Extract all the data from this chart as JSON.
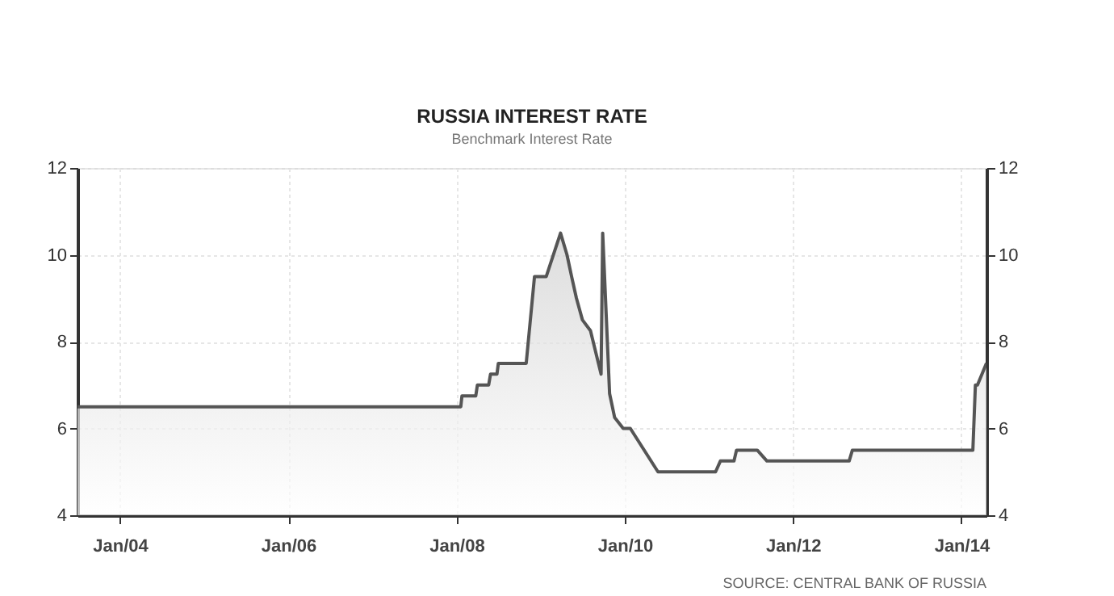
{
  "chart_data": {
    "type": "area",
    "title": "RUSSIA INTEREST RATE",
    "subtitle": "Benchmark Interest Rate",
    "x": [
      "2003-07-01",
      "2008-01-20",
      "2008-01-25",
      "2008-03-25",
      "2008-04-01",
      "2008-05-20",
      "2008-05-28",
      "2008-06-25",
      "2008-07-01",
      "2008-10-30",
      "2008-12-05",
      "2009-01-25",
      "2009-03-28",
      "2009-04-25",
      "2009-05-15",
      "2009-06-05",
      "2009-07-01",
      "2009-08-05",
      "2009-09-20",
      "2009-09-27",
      "2009-10-27",
      "2009-11-18",
      "2009-12-25",
      "2010-01-25",
      "2010-05-25",
      "2011-01-30",
      "2011-02-20",
      "2011-04-20",
      "2011-05-01",
      "2011-07-30",
      "2011-09-10",
      "2012-09-01",
      "2012-09-15",
      "2014-02-20",
      "2014-03-03",
      "2014-03-12",
      "2014-04-20"
    ],
    "series": [
      {
        "color": "#555555",
        "values": [
          6.5,
          6.5,
          6.75,
          6.75,
          7.0,
          7.0,
          7.25,
          7.25,
          7.5,
          7.5,
          9.5,
          9.5,
          10.5,
          10.0,
          9.5,
          9.0,
          8.5,
          8.25,
          7.25,
          10.5,
          6.8,
          6.25,
          6.0,
          6.0,
          5.0,
          5.0,
          5.25,
          5.25,
          5.5,
          5.5,
          5.25,
          5.25,
          5.5,
          5.5,
          7.0,
          7.0,
          7.5
        ]
      }
    ],
    "xlim": [
      "2003-07-01",
      "2014-04-20"
    ],
    "xticks": [
      {
        "value": "2004-01-01",
        "label": "Jan/04"
      },
      {
        "value": "2006-01-01",
        "label": "Jan/06"
      },
      {
        "value": "2008-01-01",
        "label": "Jan/08"
      },
      {
        "value": "2010-01-01",
        "label": "Jan/10"
      },
      {
        "value": "2012-01-01",
        "label": "Jan/12"
      },
      {
        "value": "2014-01-01",
        "label": "Jan/14"
      }
    ],
    "ylim": [
      4,
      12
    ],
    "yticks": [
      4,
      6,
      8,
      10,
      12
    ],
    "y2lim": [
      4,
      12
    ],
    "y2ticks": [
      4,
      6,
      8,
      10,
      12
    ],
    "grid": true,
    "annotations": [
      "SOURCE: CENTRAL BANK OF RUSSIA"
    ]
  }
}
